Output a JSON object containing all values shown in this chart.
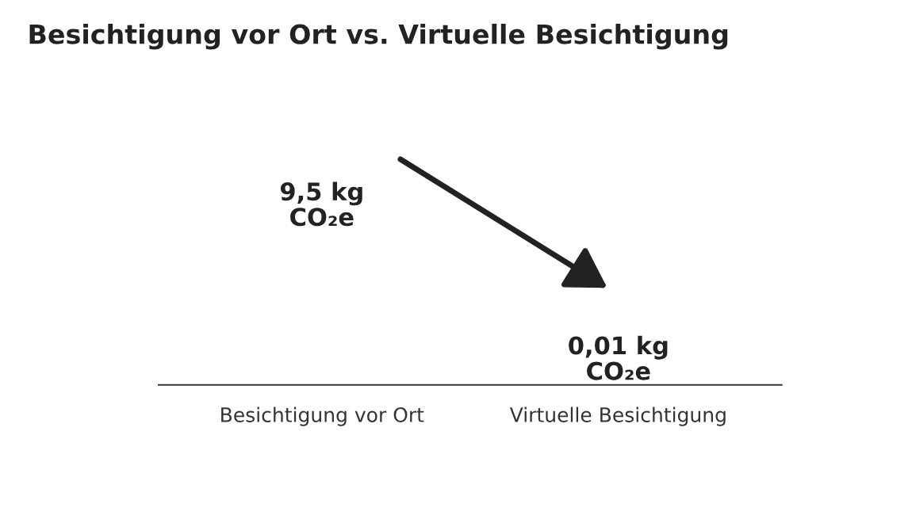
{
  "chart_data": {
    "type": "other",
    "title": "Besichtigung vor Ort vs. Virtuelle Besichtigung",
    "categories": [
      "Besichtigung vor Ort",
      "Virtuelle Besichtigung"
    ],
    "values": [
      9.5,
      0.01
    ],
    "value_labels": [
      "9,5 kg\nCO₂e",
      "0,01 kg\nCO₂e"
    ],
    "legend": false
  }
}
